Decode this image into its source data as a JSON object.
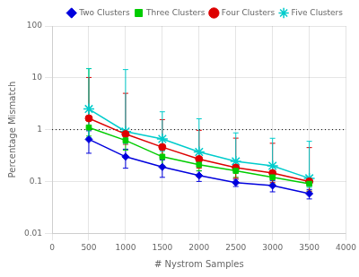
{
  "chart_data": {
    "type": "line",
    "x": [
      500,
      1000,
      1500,
      2000,
      2500,
      3000,
      3500
    ],
    "series": [
      {
        "name": "Two Clusters",
        "color": "#0000dd",
        "marker": "diamond",
        "values": [
          0.65,
          0.3,
          0.19,
          0.13,
          0.095,
          0.083,
          0.058
        ],
        "yerr_lo": [
          0.3,
          0.12,
          0.07,
          0.03,
          0.015,
          0.02,
          0.012
        ],
        "yerr_hi": [
          0.3,
          0.12,
          0.07,
          0.03,
          0.015,
          0.02,
          0.012
        ]
      },
      {
        "name": "Three Clusters",
        "color": "#00cc00",
        "marker": "square",
        "values": [
          1.1,
          0.62,
          0.3,
          0.21,
          0.16,
          0.12,
          0.09
        ],
        "yerr_lo": [
          0.35,
          0.22,
          0.1,
          0.05,
          0.04,
          0.03,
          0.025
        ],
        "yerr_hi": [
          14.0,
          0.22,
          0.1,
          0.05,
          0.04,
          0.03,
          0.025
        ]
      },
      {
        "name": "Four Clusters",
        "color": "#dd0000",
        "marker": "circle",
        "values": [
          1.65,
          0.82,
          0.46,
          0.27,
          0.185,
          0.145,
          0.1
        ],
        "yerr_lo": [
          0.55,
          0.3,
          0.17,
          0.09,
          0.07,
          0.05,
          0.035
        ],
        "yerr_hi": [
          8.5,
          4.2,
          1.1,
          0.7,
          0.5,
          0.4,
          0.35
        ]
      },
      {
        "name": "Five Clusters",
        "color": "#00cccc",
        "marker": "star",
        "values": [
          2.5,
          0.92,
          0.66,
          0.37,
          0.245,
          0.2,
          0.115
        ],
        "yerr_lo": [
          1.8,
          0.38,
          0.28,
          0.13,
          0.09,
          0.07,
          0.038
        ],
        "yerr_hi": [
          12.5,
          13.5,
          1.55,
          1.25,
          0.62,
          0.48,
          0.48
        ]
      }
    ],
    "xlabel": "# Nystrom Samples",
    "ylabel": "Percentage Mismatch",
    "xlim": [
      0,
      4000
    ],
    "ylim": [
      0.01,
      100
    ],
    "xticks": [
      0,
      500,
      1000,
      1500,
      2000,
      2500,
      3000,
      3500,
      4000
    ],
    "yticks": [
      0.01,
      0.1,
      1,
      10,
      100
    ],
    "log": "y",
    "grid": true,
    "legend": "upper right",
    "reference_lines": [
      {
        "y": 1,
        "color": "#000000",
        "line_style": "dotted"
      }
    ]
  }
}
